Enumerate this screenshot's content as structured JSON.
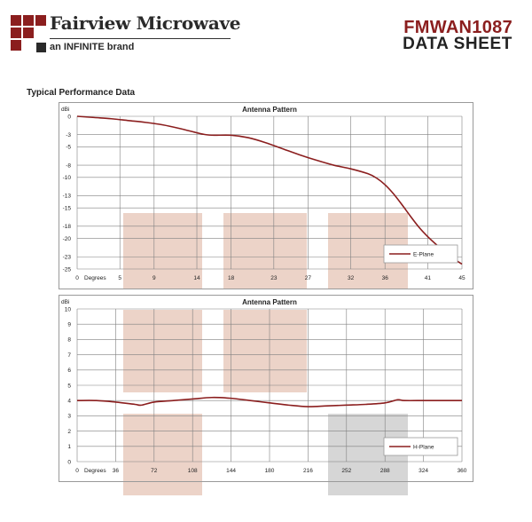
{
  "header": {
    "brand_name": "Fairview Microwave",
    "brand_tagline": "an INFINITE brand",
    "part_number": "FMWAN1087",
    "doc_type": "DATA SHEET"
  },
  "section_title": "Typical Performance Data",
  "colors": {
    "brand": "#8b1e1e",
    "series": "#8b1e1e",
    "grid": "#808080",
    "watermark_red": "#ecd3c8",
    "watermark_gray": "#d6d6d6"
  },
  "chart_data": [
    {
      "type": "line",
      "title": "Antenna Pattern",
      "ylabel": "dBi",
      "xlabel_prefix": "Degrees",
      "x_origin_label": "0",
      "ylim": [
        -25,
        0
      ],
      "xlim": [
        0,
        45
      ],
      "yticks": [
        0,
        -3,
        -5,
        -8,
        -10,
        -13,
        -15,
        -18,
        -20,
        -23,
        -25
      ],
      "xticks": [
        0,
        5,
        9,
        14,
        18,
        23,
        27,
        32,
        36,
        41,
        45
      ],
      "grid": true,
      "legend_position": "bottom-right",
      "series": [
        {
          "name": "E-Plane",
          "x": [
            0,
            2,
            4,
            6,
            8,
            10,
            12,
            14,
            15,
            16,
            18,
            20,
            22,
            24,
            26,
            28,
            30,
            32,
            34,
            35,
            36,
            37,
            38,
            39,
            40,
            41,
            42,
            43,
            44,
            45
          ],
          "y": [
            0,
            -0.2,
            -0.4,
            -0.7,
            -1.0,
            -1.4,
            -2.0,
            -2.7,
            -3.0,
            -3.1,
            -3.1,
            -3.5,
            -4.3,
            -5.3,
            -6.3,
            -7.2,
            -8.0,
            -8.6,
            -9.4,
            -10.1,
            -11.2,
            -12.7,
            -14.5,
            -16.4,
            -18.2,
            -19.7,
            -21.0,
            -22.2,
            -23.3,
            -24.2
          ]
        }
      ]
    },
    {
      "type": "line",
      "title": "Antenna Pattern",
      "ylabel": "dBi",
      "xlabel_prefix": "Degrees",
      "x_origin_label": "0",
      "ylim": [
        0,
        10
      ],
      "xlim": [
        0,
        360
      ],
      "yticks": [
        0,
        1,
        2,
        3,
        4,
        5,
        6,
        7,
        8,
        9,
        10
      ],
      "xticks": [
        0,
        36,
        72,
        108,
        144,
        180,
        216,
        252,
        288,
        324,
        360
      ],
      "grid": true,
      "legend_position": "bottom-right",
      "series": [
        {
          "name": "H-Plane",
          "x": [
            0,
            18,
            36,
            54,
            60,
            72,
            90,
            108,
            126,
            144,
            162,
            180,
            198,
            216,
            234,
            252,
            270,
            288,
            300,
            306,
            324,
            342,
            360
          ],
          "y": [
            4.0,
            4.0,
            3.9,
            3.75,
            3.7,
            3.9,
            4.0,
            4.1,
            4.2,
            4.15,
            4.0,
            3.85,
            3.7,
            3.6,
            3.65,
            3.7,
            3.75,
            3.85,
            4.05,
            4.0,
            4.0,
            4.0,
            4.0
          ]
        }
      ]
    }
  ]
}
